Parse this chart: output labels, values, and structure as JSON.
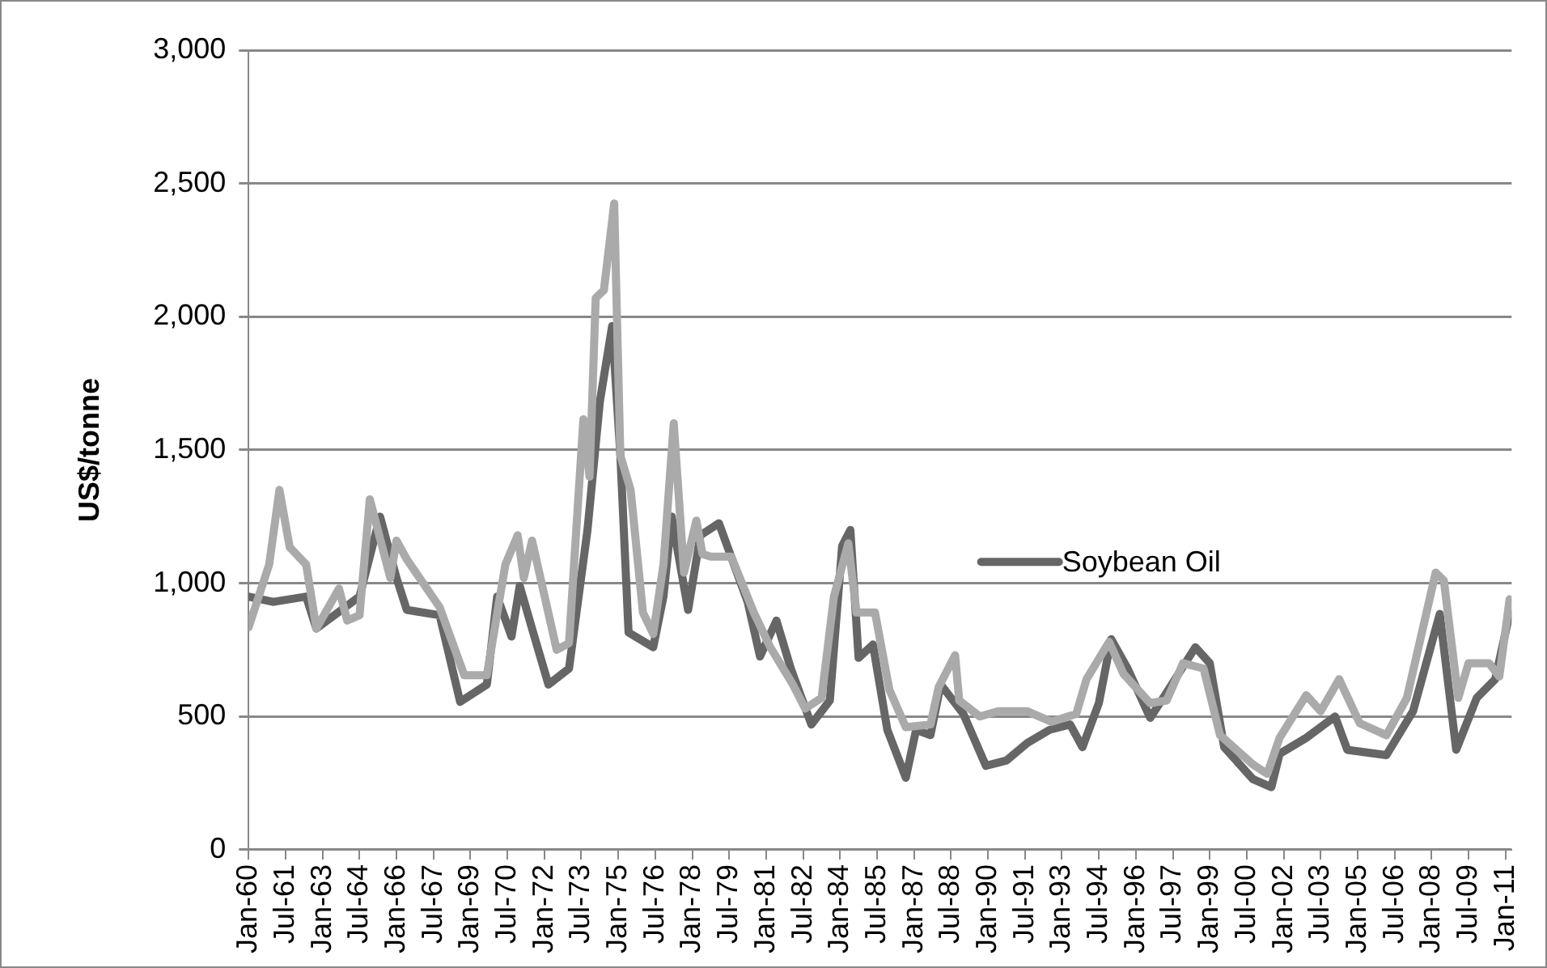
{
  "chart_data": {
    "type": "line",
    "ylabel": "US$/tonne",
    "xlim": [
      "1960-01",
      "2011-04"
    ],
    "xticks": [
      {
        "value": "1960-01",
        "label": "Jan-60"
      },
      {
        "value": "1961-07",
        "label": "Jul-61"
      },
      {
        "value": "1963-01",
        "label": "Jan-63"
      },
      {
        "value": "1964-07",
        "label": "Jul-64"
      },
      {
        "value": "1966-01",
        "label": "Jan-66"
      },
      {
        "value": "1967-07",
        "label": "Jul-67"
      },
      {
        "value": "1969-01",
        "label": "Jan-69"
      },
      {
        "value": "1970-07",
        "label": "Jul-70"
      },
      {
        "value": "1972-01",
        "label": "Jan-72"
      },
      {
        "value": "1973-07",
        "label": "Jul-73"
      },
      {
        "value": "1975-01",
        "label": "Jan-75"
      },
      {
        "value": "1976-07",
        "label": "Jul-76"
      },
      {
        "value": "1978-01",
        "label": "Jan-78"
      },
      {
        "value": "1979-07",
        "label": "Jul-79"
      },
      {
        "value": "1981-01",
        "label": "Jan-81"
      },
      {
        "value": "1982-07",
        "label": "Jul-82"
      },
      {
        "value": "1984-01",
        "label": "Jan-84"
      },
      {
        "value": "1985-07",
        "label": "Jul-85"
      },
      {
        "value": "1987-01",
        "label": "Jan-87"
      },
      {
        "value": "1988-07",
        "label": "Jul-88"
      },
      {
        "value": "1990-01",
        "label": "Jan-90"
      },
      {
        "value": "1991-07",
        "label": "Jul-91"
      },
      {
        "value": "1993-01",
        "label": "Jan-93"
      },
      {
        "value": "1994-07",
        "label": "Jul-94"
      },
      {
        "value": "1996-01",
        "label": "Jan-96"
      },
      {
        "value": "1997-07",
        "label": "Jul-97"
      },
      {
        "value": "1999-01",
        "label": "Jan-99"
      },
      {
        "value": "2000-07",
        "label": "Jul-00"
      },
      {
        "value": "2002-01",
        "label": "Jan-02"
      },
      {
        "value": "2003-07",
        "label": "Jul-03"
      },
      {
        "value": "2005-01",
        "label": "Jan-05"
      },
      {
        "value": "2006-07",
        "label": "Jul-06"
      },
      {
        "value": "2008-01",
        "label": "Jan-08"
      },
      {
        "value": "2009-07",
        "label": "Jul-09"
      },
      {
        "value": "2011-01",
        "label": "Jan-11"
      }
    ],
    "ylim": [
      0,
      3000
    ],
    "yticks": [
      0,
      500,
      {
        "value": 1000,
        "label": "1,000"
      },
      {
        "value": 1500,
        "label": "1,500"
      },
      {
        "value": 2000,
        "label": "2,000"
      },
      {
        "value": 2500,
        "label": "2,500"
      },
      {
        "value": 3000,
        "label": "3,000"
      }
    ],
    "grid": "y",
    "legend": "right",
    "marker": "none",
    "series": [
      {
        "name": "Soybean Oil",
        "color": "#666666",
        "x": [
          "1960-01",
          "1961-01",
          "1962-05",
          "1962-10",
          "1964-07",
          "1965-05",
          "1966-01",
          "1966-06",
          "1967-10",
          "1968-08",
          "1969-09",
          "1970-02",
          "1970-09",
          "1971-01",
          "1971-07",
          "1972-03",
          "1973-01",
          "1973-10",
          "1974-04",
          "1974-10",
          "1975-02",
          "1975-06",
          "1976-06",
          "1976-11",
          "1977-03",
          "1977-11",
          "1978-05",
          "1979-02",
          "1980-04",
          "1980-10",
          "1981-06",
          "1982-01",
          "1982-11",
          "1983-08",
          "1984-02",
          "1984-06",
          "1984-10",
          "1985-05",
          "1985-12",
          "1986-09",
          "1987-02",
          "1987-09",
          "1988-02",
          "1989-01",
          "1989-12",
          "1990-10",
          "1991-08",
          "1992-07",
          "1993-05",
          "1993-11",
          "1994-07",
          "1995-01",
          "1995-09",
          "1996-08",
          "1997-04",
          "1998-06",
          "1999-01",
          "1999-08",
          "2000-10",
          "2001-07",
          "2001-11",
          "2002-12",
          "2004-02",
          "2004-08",
          "2006-03",
          "2007-04",
          "2008-05",
          "2009-01",
          "2009-11",
          "2010-08",
          "2011-03"
        ],
        "values": [
          950,
          930,
          950,
          830,
          950,
          1250,
          1020,
          900,
          880,
          555,
          620,
          950,
          800,
          990,
          830,
          620,
          680,
          1200,
          1680,
          1965,
          1480,
          815,
          760,
          950,
          1250,
          900,
          1180,
          1225,
          930,
          725,
          860,
          680,
          470,
          560,
          1140,
          1200,
          720,
          770,
          450,
          270,
          450,
          430,
          620,
          510,
          315,
          335,
          400,
          450,
          470,
          385,
          550,
          790,
          680,
          495,
          590,
          760,
          700,
          385,
          265,
          235,
          360,
          420,
          500,
          375,
          355,
          520,
          885,
          375,
          570,
          640,
          885
        ]
      },
      {
        "color": "#aaaaaa",
        "x": [
          "1960-01",
          "1960-11",
          "1961-04",
          "1961-09",
          "1962-05",
          "1962-10",
          "1963-09",
          "1964-01",
          "1964-07",
          "1964-12",
          "1965-10",
          "1966-01",
          "1966-06",
          "1967-10",
          "1968-10",
          "1969-09",
          "1970-06",
          "1970-12",
          "1971-03",
          "1971-07",
          "1972-07",
          "1973-01",
          "1973-08",
          "1973-11",
          "1974-02",
          "1974-06",
          "1974-11",
          "1975-02",
          "1975-07",
          "1976-01",
          "1976-06",
          "1976-11",
          "1977-04",
          "1977-09",
          "1978-03",
          "1978-06",
          "1978-10",
          "1979-08",
          "1980-07",
          "1981-03",
          "1982-02",
          "1982-08",
          "1983-04",
          "1983-10",
          "1984-05",
          "1984-09",
          "1985-06",
          "1986-01",
          "1986-09",
          "1987-09",
          "1988-01",
          "1988-09",
          "1988-11",
          "1989-09",
          "1990-06",
          "1991-08",
          "1992-08",
          "1993-08",
          "1994-01",
          "1994-12",
          "1995-07",
          "1996-08",
          "1997-04",
          "1997-12",
          "1998-10",
          "1999-06",
          "2000-10",
          "2001-05",
          "2001-11",
          "2002-12",
          "2003-07",
          "2004-04",
          "2005-02",
          "2006-03",
          "2007-01",
          "2008-03",
          "2008-07",
          "2009-02",
          "2009-07",
          "2010-05",
          "2010-10",
          "2011-03"
        ],
        "values": [
          835,
          1070,
          1350,
          1135,
          1070,
          830,
          980,
          860,
          880,
          1315,
          1020,
          1160,
          1090,
          910,
          655,
          655,
          1070,
          1180,
          1020,
          1160,
          750,
          775,
          1615,
          1400,
          2070,
          2100,
          2425,
          1480,
          1350,
          890,
          810,
          1070,
          1600,
          1040,
          1235,
          1110,
          1100,
          1100,
          890,
          760,
          620,
          530,
          570,
          950,
          1150,
          890,
          890,
          600,
          460,
          470,
          610,
          730,
          560,
          500,
          520,
          520,
          480,
          510,
          640,
          780,
          660,
          550,
          560,
          700,
          680,
          430,
          320,
          285,
          420,
          580,
          520,
          640,
          475,
          430,
          570,
          1040,
          1010,
          570,
          700,
          700,
          650,
          940
        ]
      }
    ]
  }
}
